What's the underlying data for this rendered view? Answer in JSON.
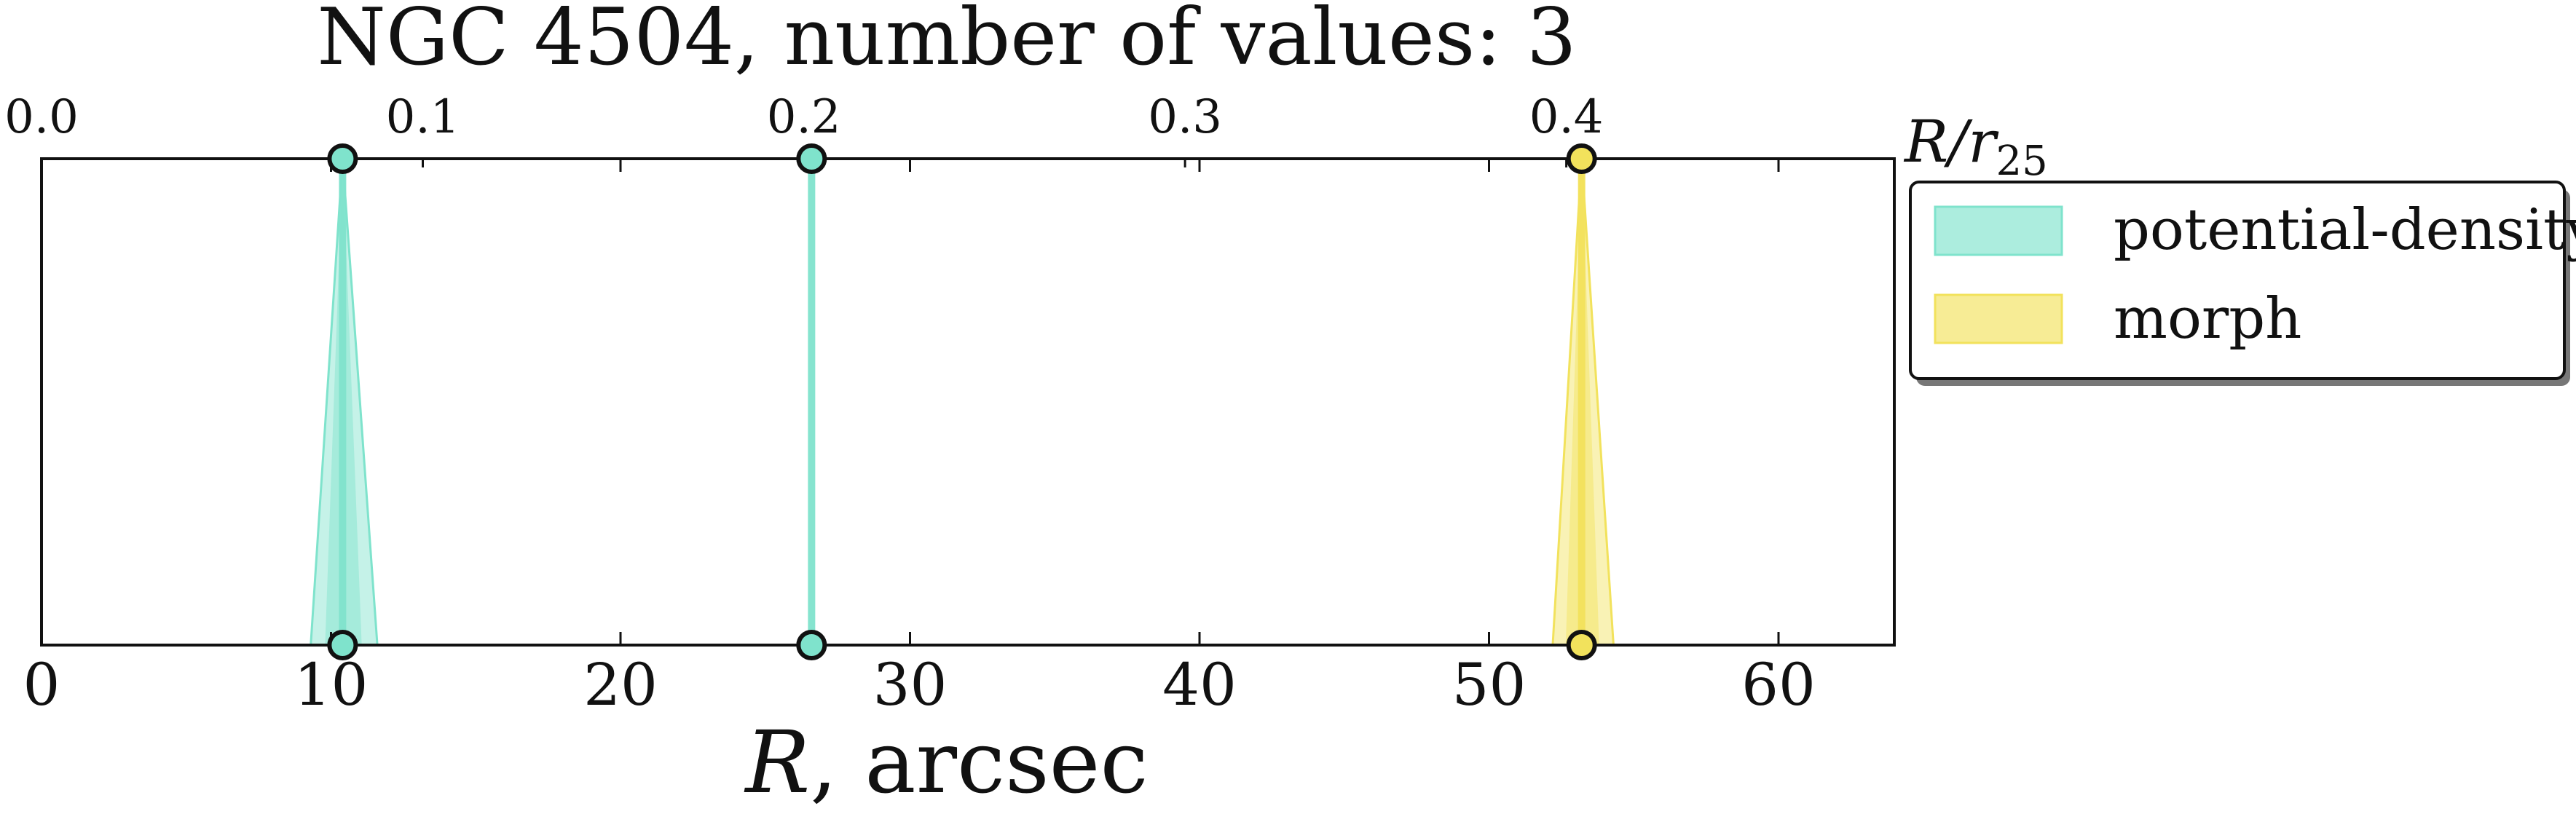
{
  "chart_data": {
    "type": "range-markers",
    "title": "NGC 4504, number of values: 3",
    "xlabel_italic": "R",
    "xlabel_rest": ", arcsec",
    "top_axis_label_main": "R/r",
    "top_axis_label_sub": "25",
    "xlim": [
      0,
      64
    ],
    "xticks": [
      0,
      10,
      20,
      30,
      40,
      50,
      60
    ],
    "top_xlim": [
      0.0,
      0.4
    ],
    "top_xticks": [
      "0.0",
      "0.1",
      "0.2",
      "0.3",
      "0.4"
    ],
    "top_xtick_positions_arcsec": [
      0,
      13.17,
      26.33,
      39.5,
      52.67
    ],
    "grid": false,
    "legend_position": "outside-right-top",
    "series": [
      {
        "name": "potential-density",
        "color": "#7fe3cc",
        "markers": [
          {
            "x": 10.4,
            "lo": 9.3,
            "hi": 11.6
          },
          {
            "x": 26.6,
            "lo": 26.5,
            "hi": 26.7
          }
        ]
      },
      {
        "name": "morph",
        "color": "#f2e25c",
        "markers": [
          {
            "x": 53.2,
            "lo": 52.2,
            "hi": 54.3
          }
        ]
      }
    ]
  }
}
